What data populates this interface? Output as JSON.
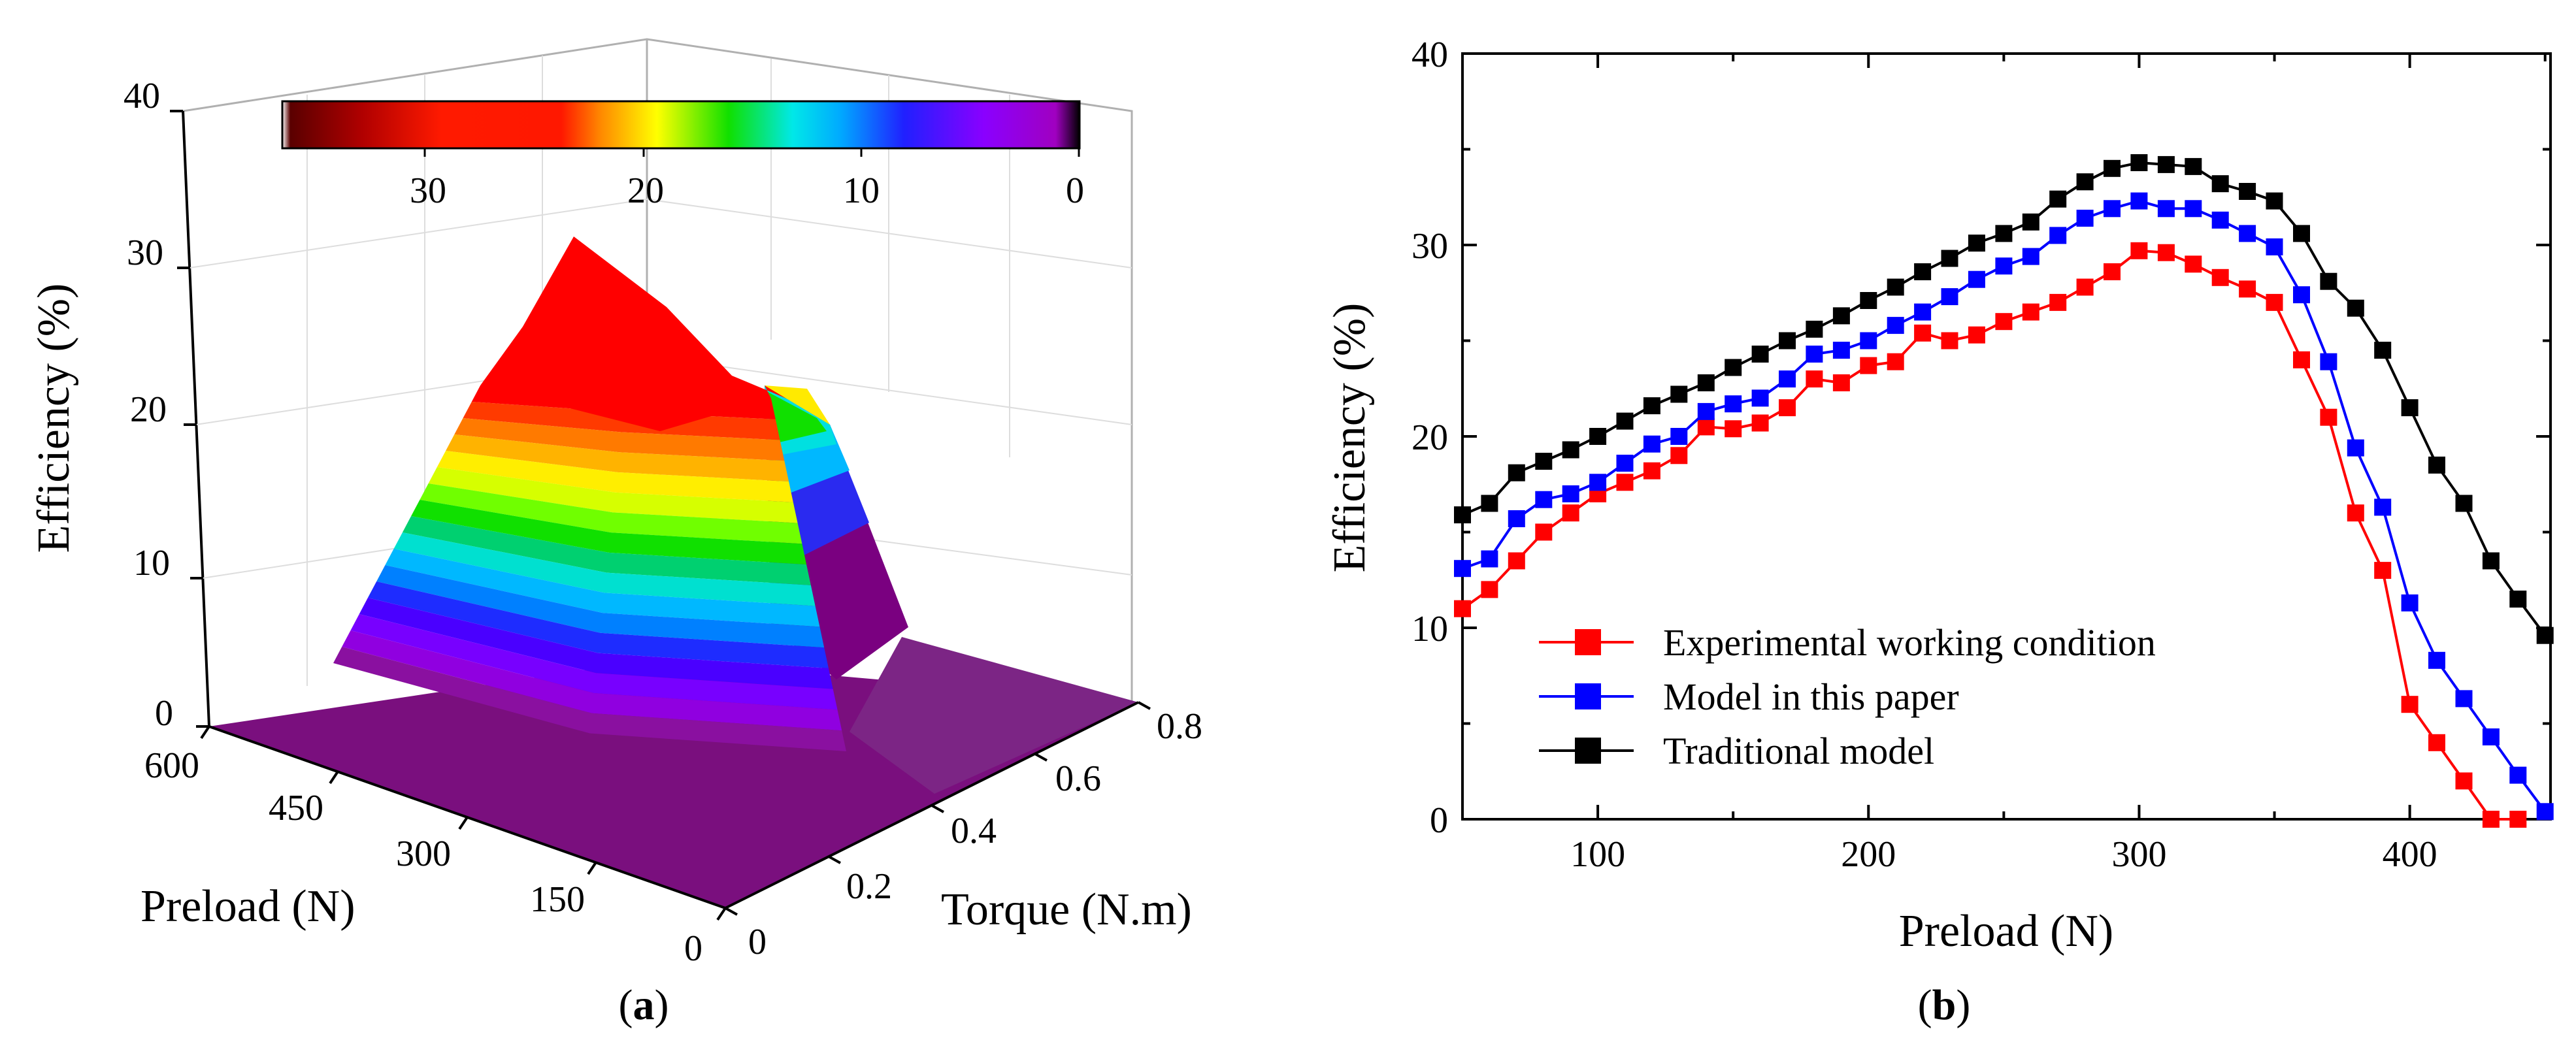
{
  "panel_a": {
    "label_open": "(",
    "label_letter": "a",
    "label_close": ")",
    "z_axis_label": "Efficiency (%)",
    "x_axis_label": "Preload (N)",
    "y_axis_label": "Torque (N.m)",
    "z_ticks": [
      "0",
      "10",
      "20",
      "30",
      "40"
    ],
    "preload_ticks": [
      "0",
      "150",
      "300",
      "450",
      "600"
    ],
    "torque_ticks": [
      "0",
      "0.2",
      "0.4",
      "0.6",
      "0.8"
    ],
    "colorbar_ticks": [
      "30",
      "20",
      "10",
      "0"
    ]
  },
  "panel_b": {
    "label_open": "(",
    "label_letter": "b",
    "label_close": ")"
  },
  "chart_data": [
    {
      "type": "surface",
      "panel": "a",
      "title": "",
      "xlabel": "Preload (N)",
      "ylabel": "Torque (N.m)",
      "zlabel": "Efficiency (%)",
      "xlim": [
        0,
        600
      ],
      "ylim": [
        0,
        0.8
      ],
      "zlim": [
        0,
        40
      ],
      "colorbar": {
        "min": 0,
        "max": 36,
        "ticks": [
          30,
          20,
          10,
          0
        ]
      },
      "peak": {
        "preload": 300,
        "torque": 0.5,
        "efficiency": 34
      }
    },
    {
      "type": "line",
      "panel": "b",
      "title": "",
      "xlabel": "Preload (N)",
      "ylabel": "Efficiency (%)",
      "xlim": [
        50,
        452
      ],
      "ylim": [
        0,
        40
      ],
      "x_ticks": [
        100,
        200,
        300,
        400
      ],
      "y_ticks": [
        0,
        10,
        20,
        30,
        40
      ],
      "legend_position": "lower-left",
      "x": [
        50,
        60,
        70,
        80,
        90,
        100,
        110,
        120,
        130,
        140,
        150,
        160,
        170,
        180,
        190,
        200,
        210,
        220,
        230,
        240,
        250,
        260,
        270,
        280,
        290,
        300,
        310,
        320,
        330,
        340,
        350,
        360,
        370,
        380,
        390,
        400,
        410,
        420,
        430,
        440,
        450
      ],
      "series": [
        {
          "name": "Experimental working condition",
          "color": "#ff0000",
          "values": [
            11,
            12,
            13.5,
            15,
            16,
            17,
            17.6,
            18.2,
            19,
            20.5,
            20.4,
            20.7,
            21.5,
            23,
            22.8,
            23.7,
            23.9,
            25.4,
            25,
            25.3,
            26,
            26.5,
            27,
            27.8,
            28.6,
            29.7,
            29.6,
            29,
            28.3,
            27.7,
            27,
            24,
            21,
            16,
            13,
            6,
            4,
            2,
            0,
            0,
            null
          ]
        },
        {
          "name": "Model in this paper",
          "color": "#0000ff",
          "values": [
            13.1,
            13.6,
            15.7,
            16.7,
            17,
            17.6,
            18.6,
            19.6,
            20,
            21.3,
            21.7,
            22,
            23,
            24.3,
            24.5,
            25,
            25.8,
            26.5,
            27.3,
            28.2,
            28.9,
            29.4,
            30.5,
            31.4,
            31.9,
            32.3,
            31.9,
            31.9,
            31.3,
            30.6,
            29.9,
            27.4,
            23.9,
            19.4,
            16.3,
            11.3,
            8.3,
            6.3,
            4.3,
            2.3,
            0.4
          ]
        },
        {
          "name": "Traditional model",
          "color": "#000000",
          "values": [
            15.9,
            16.5,
            18.1,
            18.7,
            19.3,
            20,
            20.8,
            21.6,
            22.2,
            22.8,
            23.6,
            24.3,
            25,
            25.6,
            26.3,
            27.1,
            27.8,
            28.6,
            29.3,
            30.1,
            30.6,
            31.2,
            32.4,
            33.3,
            34,
            34.3,
            34.2,
            34.1,
            33.2,
            32.8,
            32.3,
            30.6,
            28.1,
            26.7,
            24.5,
            21.5,
            18.5,
            16.5,
            13.5,
            11.5,
            9.6
          ]
        }
      ]
    }
  ]
}
